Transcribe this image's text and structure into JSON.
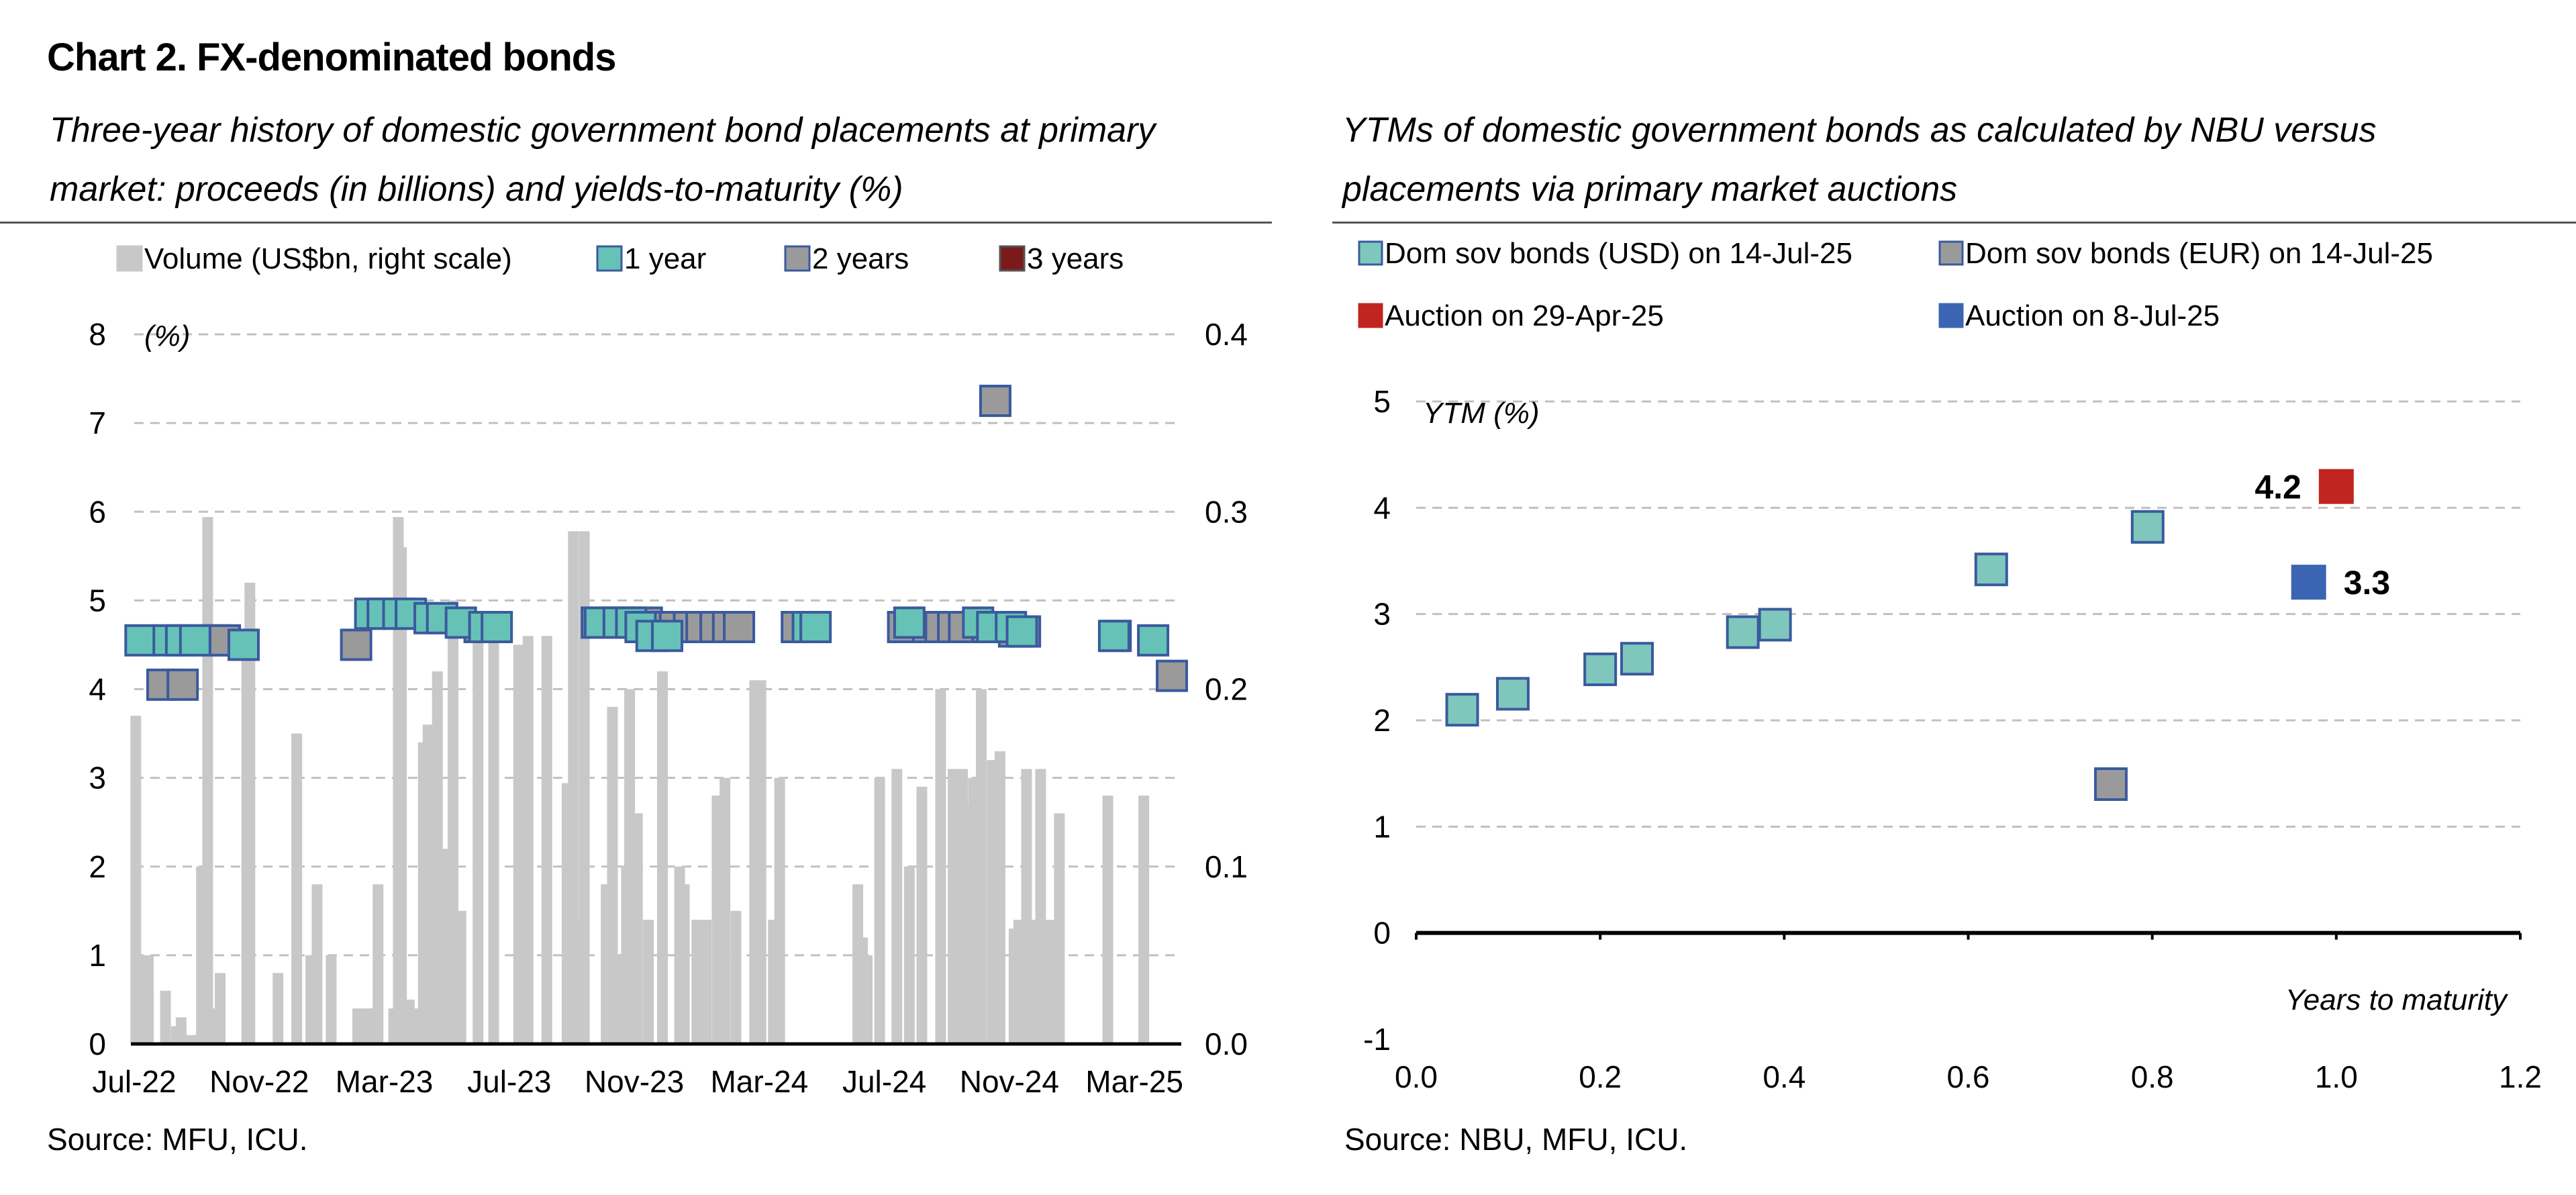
{
  "page": {
    "title": "Chart 2. FX-denominated bonds",
    "left_subtitle": "Three-year history of domestic government bond placements at primary market: proceeds (in billions) and yields-to-maturity (%)",
    "right_subtitle": "YTMs of domestic government bonds as calculated by NBU versus placements via primary market auctions",
    "left_source": "Source: MFU, ICU.",
    "right_source": "Source: NBU, MFU, ICU."
  },
  "chart_data": [
    {
      "type": "bar",
      "title": "",
      "legend_position": "top",
      "grid": true,
      "left_axis": {
        "label": "(%)",
        "ylim": [
          0,
          8
        ],
        "ticks": [
          "0",
          "1",
          "2",
          "3",
          "4",
          "5",
          "6",
          "7",
          "8"
        ]
      },
      "right_axis": {
        "ylim": [
          0,
          0.4
        ],
        "ticks": [
          "0.0",
          "0.1",
          "0.2",
          "0.3",
          "0.4"
        ]
      },
      "x_range": [
        0,
        33.5
      ],
      "x_ticks": [
        {
          "label": "Jul-22",
          "x": 0
        },
        {
          "label": "Nov-22",
          "x": 4
        },
        {
          "label": "Mar-23",
          "x": 8
        },
        {
          "label": "Jul-23",
          "x": 12
        },
        {
          "label": "Nov-23",
          "x": 16
        },
        {
          "label": "Mar-24",
          "x": 20
        },
        {
          "label": "Jul-24",
          "x": 24
        },
        {
          "label": "Nov-24",
          "x": 28
        },
        {
          "label": "Mar-25",
          "x": 32
        }
      ],
      "legend": [
        {
          "name": "Volume (US$bn, right scale)",
          "color": "#c8c8c8",
          "edge": "#c8c8c8"
        },
        {
          "name": "1 year",
          "color": "#66c2b6",
          "edge": "#3a5a9e"
        },
        {
          "name": "2 years",
          "color": "#9a9a9a",
          "edge": "#3a5a9e"
        },
        {
          "name": "3 years",
          "color": "#7a1a1a",
          "edge": "#555555"
        }
      ],
      "series": [
        {
          "name": "Volume (US$bn, right scale)",
          "axis": "right",
          "x": [
            0.05,
            0.18,
            0.32,
            0.45,
            1.0,
            1.35,
            1.5,
            1.8,
            2.05,
            2.15,
            2.25,
            2.35,
            2.55,
            2.75,
            3.6,
            3.7,
            4.6,
            5.2,
            5.65,
            5.85,
            6.3,
            7.15,
            7.45,
            7.55,
            7.8,
            8.3,
            8.45,
            8.55,
            8.8,
            9.1,
            9.25,
            9.4,
            9.55,
            9.7,
            9.95,
            10.2,
            10.45,
            11.0,
            11.5,
            12.3,
            12.6,
            13.2,
            13.85,
            14.05,
            14.2,
            14.4,
            15.1,
            15.3,
            15.55,
            15.75,
            15.85,
            16.1,
            16.45,
            16.9,
            17.45,
            17.6,
            18.0,
            18.3,
            18.65,
            18.9,
            19.25,
            19.85,
            20.05,
            20.45,
            20.65,
            23.15,
            23.3,
            23.45,
            23.85,
            24.4,
            24.8,
            25.2,
            25.8,
            26.2,
            26.5,
            26.7,
            26.85,
            27.1,
            27.45,
            27.7,
            28.15,
            28.3,
            28.55,
            28.7,
            29.0,
            29.3,
            29.6,
            31.15,
            32.3,
            33.4
          ],
          "values": [
            0.185,
            0.05,
            0.02,
            0.05,
            0.03,
            0.01,
            0.015,
            0.005,
            0.005,
            0.1,
            0.1,
            0.297,
            0.02,
            0.04,
            0.23,
            0.26,
            0.04,
            0.175,
            0.05,
            0.09,
            0.05,
            0.02,
            0.02,
            0.02,
            0.09,
            0.02,
            0.297,
            0.28,
            0.025,
            0.02,
            0.17,
            0.18,
            0.15,
            0.21,
            0.11,
            0.25,
            0.075,
            0.236,
            0.23,
            0.225,
            0.23,
            0.23,
            0.147,
            0.289,
            0.07,
            0.289,
            0.09,
            0.19,
            0.05,
            0.1,
            0.2,
            0.13,
            0.07,
            0.21,
            0.1,
            0.09,
            0.07,
            0.07,
            0.14,
            0.15,
            0.075,
            0.205,
            0.205,
            0.07,
            0.15,
            0.09,
            0.06,
            0.05,
            0.15,
            0.155,
            0.1,
            0.145,
            0.2,
            0.155,
            0.155,
            0.135,
            0.15,
            0.2,
            0.16,
            0.165,
            0.065,
            0.07,
            0.155,
            0.07,
            0.155,
            0.07,
            0.13,
            0.14,
            0.14,
            0.0
          ],
          "color": "#c8c8c8"
        },
        {
          "name": "1 year",
          "axis": "left",
          "x": [
            0.2,
            1.1,
            1.5,
            1.95,
            3.5,
            7.55,
            7.95,
            8.45,
            8.85,
            9.45,
            9.85,
            10.45,
            11.2,
            11.6,
            14.9,
            15.5,
            15.9,
            16.2,
            16.55,
            17.05,
            21.55,
            21.8,
            24.8,
            27.0,
            27.45,
            28.05,
            28.4,
            31.35,
            32.6
          ],
          "values": [
            4.55,
            4.55,
            4.55,
            4.55,
            4.5,
            4.85,
            4.85,
            4.85,
            4.85,
            4.8,
            4.8,
            4.75,
            4.7,
            4.7,
            4.75,
            4.75,
            4.75,
            4.7,
            4.6,
            4.6,
            4.7,
            4.7,
            4.75,
            4.75,
            4.7,
            4.7,
            4.65,
            4.6,
            4.55
          ],
          "color": "#66c2b6"
        },
        {
          "name": "2 years",
          "axis": "left",
          "x": [
            0.9,
            1.55,
            2.6,
            2.9,
            7.1,
            11.05,
            14.8,
            15.45,
            15.85,
            16.4,
            16.85,
            17.3,
            17.75,
            18.15,
            18.6,
            19.0,
            19.35,
            21.2,
            21.6,
            24.6,
            25.4,
            25.8,
            26.2,
            26.55,
            27.3,
            27.7,
            28.15,
            28.5,
            31.4,
            33.2
          ],
          "values": [
            4.05,
            4.05,
            4.55,
            4.55,
            4.5,
            4.7,
            4.75,
            4.75,
            4.75,
            4.75,
            4.7,
            4.7,
            4.7,
            4.7,
            4.7,
            4.7,
            4.7,
            4.7,
            4.7,
            4.7,
            4.7,
            4.7,
            4.7,
            4.7,
            4.7,
            4.7,
            4.65,
            4.65,
            4.6,
            4.15
          ],
          "extra_points": [
            {
              "x": 27.55,
              "y": 7.25
            }
          ],
          "color": "#9a9a9a"
        },
        {
          "name": "3 years",
          "axis": "left",
          "x": [],
          "values": [],
          "color": "#7a1a1a"
        }
      ]
    },
    {
      "type": "scatter",
      "title": "",
      "xlabel": "Years to maturity",
      "ylabel": "YTM (%)",
      "xlim": [
        0.0,
        1.2
      ],
      "ylim": [
        -1,
        5
      ],
      "x_ticks": [
        "0.0",
        "0.2",
        "0.4",
        "0.6",
        "0.8",
        "1.0",
        "1.2"
      ],
      "y_ticks": [
        "-1",
        "0",
        "1",
        "2",
        "3",
        "4",
        "5"
      ],
      "grid": true,
      "legend_position": "top",
      "legend": [
        {
          "name": "Dom sov bonds (USD) on 14-Jul-25",
          "color": "#7fc7bc",
          "edge": "#3a5a9e"
        },
        {
          "name": "Dom sov bonds (EUR) on 14-Jul-25",
          "color": "#9a9a9a",
          "edge": "#3a5a9e"
        },
        {
          "name": "Auction on 29-Apr-25",
          "color": "#c0261f",
          "edge": "#c0261f"
        },
        {
          "name": "Auction on 8-Jul-25",
          "color": "#3b65b3",
          "edge": "#3b65b3"
        }
      ],
      "series": [
        {
          "name": "Dom sov bonds (USD) on 14-Jul-25",
          "x": [
            0.05,
            0.105,
            0.2,
            0.24,
            0.355,
            0.39,
            0.625,
            0.795
          ],
          "y": [
            2.1,
            2.25,
            2.48,
            2.58,
            2.83,
            2.9,
            3.42,
            3.82
          ],
          "color": "#7fc7bc"
        },
        {
          "name": "Dom sov bonds (EUR) on 14-Jul-25",
          "x": [
            0.755
          ],
          "y": [
            1.4
          ],
          "color": "#9a9a9a"
        },
        {
          "name": "Auction on 29-Apr-25",
          "x": [
            1.0
          ],
          "y": [
            4.2
          ],
          "data_label": "4.2",
          "color": "#c0261f"
        },
        {
          "name": "Auction on 8-Jul-25",
          "x": [
            0.97
          ],
          "y": [
            3.3
          ],
          "data_label": "3.3",
          "color": "#3b65b3"
        }
      ]
    }
  ]
}
